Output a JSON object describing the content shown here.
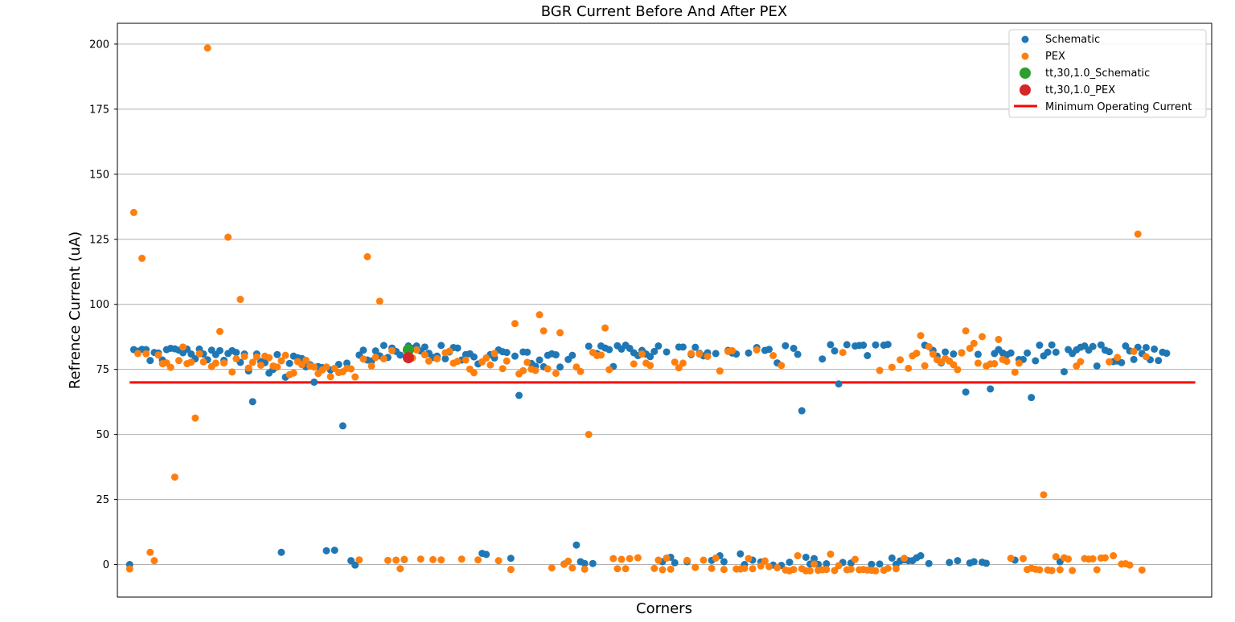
{
  "chart_data": {
    "type": "scatter",
    "title": "BGR Current Before And After PEX",
    "xlabel": "Corners",
    "ylabel": "Refrence Current (uA)",
    "ylim": [
      -12.5,
      208
    ],
    "xlim": [
      -3,
      264
    ],
    "yticks": [
      0,
      25,
      50,
      75,
      100,
      125,
      150,
      175,
      200
    ],
    "ytick_labels": [
      "0",
      "25",
      "50",
      "75",
      "100",
      "125",
      "150",
      "175",
      "200"
    ],
    "grid": "horizontal",
    "legend_position": "top-right",
    "legend": [
      "Schematic",
      "PEX",
      "tt,30,1.0_Schematic",
      "tt,30,1.0_PEX",
      "Minimum Operating Current"
    ],
    "colors": {
      "schematic": "#1f77b4",
      "pex": "#ff7f0e",
      "tt_schematic": "#2ca02c",
      "tt_pex": "#d62728",
      "min_current": "#ff0000"
    },
    "series": [
      {
        "name": "Schematic",
        "values": [
          0.0,
          82.6,
          82.0,
          82.7,
          82.6,
          78.4,
          81.5,
          81.3,
          78.6,
          82.6,
          83.1,
          82.9,
          82.4,
          81.4,
          82.8,
          80.9,
          79.1,
          82.8,
          80.9,
          78.7,
          82.4,
          80.7,
          82.2,
          78.5,
          81.1,
          82.2,
          81.5,
          77.7,
          80.9,
          74.4,
          62.6,
          80.9,
          78.0,
          77.6,
          73.6,
          75.0,
          80.7,
          4.7,
          72.0,
          77.3,
          80.1,
          79.5,
          79.2,
          76.0,
          76.8,
          70.1,
          76.1,
          75.7,
          5.3,
          74.8,
          5.5,
          76.9,
          53.3,
          77.4,
          1.5,
          -0.2,
          80.5,
          82.4,
          78.6,
          78.2,
          82.1,
          80.2,
          84.2,
          79.6,
          83.2,
          81.9,
          80.5,
          1.9,
          84.0,
          83.1,
          84.0,
          82.1,
          83.6,
          81.2,
          79.6,
          80.1,
          84.2,
          79.1,
          81.7,
          83.4,
          83.2,
          78.6,
          80.7,
          81.0,
          79.8,
          77.1,
          4.3,
          3.9,
          80.7,
          79.4,
          82.5,
          81.8,
          81.5,
          2.4,
          80.1,
          65.0,
          81.7,
          81.6,
          77.3,
          76.2,
          78.6,
          76.0,
          80.4,
          81.0,
          80.6,
          75.9,
          0.2,
          78.8,
          80.4,
          7.5,
          1.1,
          0.4,
          83.9,
          0.4,
          81.1,
          84.0,
          83.2,
          82.6,
          76.1,
          84.1,
          82.8,
          84.3,
          83.1,
          81.4,
          80.3,
          82.3,
          80.9,
          79.9,
          81.9,
          84.0,
          1.1,
          81.7,
          2.8,
          0.7,
          83.6,
          83.6,
          1.1,
          80.7,
          83.5,
          81.2,
          80.2,
          81.4,
          1.6,
          81.1,
          3.4,
          1.1,
          82.3,
          81.3,
          80.9,
          4.1,
          0.0,
          81.3,
          1.7,
          83.4,
          1.0,
          82.3,
          82.7,
          -0.2,
          77.5,
          -0.3,
          84.1,
          0.9,
          83.1,
          80.8,
          59.1,
          2.8,
          0.2,
          2.3,
          0.1,
          79.0,
          0.3,
          84.5,
          82.1,
          69.4,
          0.8,
          84.5,
          0.6,
          84.0,
          84.2,
          84.3,
          80.3,
          0.1,
          84.4,
          0.2,
          84.3,
          84.6,
          2.5,
          0.1,
          1.4,
          1.8,
          1.5,
          1.5,
          2.6,
          3.4,
          84.3,
          0.4,
          82.3,
          80.1,
          77.5,
          81.7,
          0.8,
          80.9,
          1.5,
          81.4,
          66.3,
          0.6,
          1.1,
          80.8,
          0.9,
          0.5,
          67.5,
          81.1,
          82.6,
          81.3,
          80.6,
          81.3,
          1.7,
          78.8,
          78.8,
          81.3,
          64.2,
          78.3,
          84.3,
          80.2,
          81.6,
          84.4,
          81.6,
          1.1,
          74.1,
          82.6,
          81.1,
          82.5,
          83.5,
          84.0,
          82.4,
          83.8,
          76.3,
          84.4,
          82.4,
          81.8,
          78.0,
          78.2,
          77.6,
          84.0,
          82.1,
          78.8,
          83.5,
          81.1,
          83.4,
          78.7,
          82.8,
          78.4,
          81.6,
          81.2
        ]
      },
      {
        "name": "PEX",
        "values": [
          -1.7,
          135.3,
          81.1,
          117.7,
          81.0,
          4.7,
          1.5,
          80.5,
          77.2,
          77.5,
          75.8,
          33.6,
          78.4,
          83.6,
          77.2,
          77.8,
          56.3,
          81.0,
          77.9,
          198.5,
          76.1,
          77.4,
          89.6,
          77.5,
          125.8,
          74.0,
          79.1,
          101.9,
          80.0,
          75.5,
          77.7,
          79.8,
          76.6,
          80.1,
          79.5,
          76.3,
          75.9,
          78.3,
          80.4,
          73.0,
          73.6,
          78.0,
          76.8,
          78.5,
          76.3,
          75.9,
          73.4,
          74.8,
          75.9,
          72.2,
          75.4,
          73.8,
          74.1,
          75.4,
          75.2,
          72.1,
          1.8,
          79.0,
          118.3,
          76.3,
          79.6,
          101.2,
          79.1,
          1.6,
          82.2,
          1.7,
          -1.6,
          2.0,
          82.4,
          79.4,
          82.5,
          2.1,
          80.6,
          78.2,
          1.9,
          79.1,
          1.8,
          81.4,
          82.0,
          77.4,
          78.1,
          2.1,
          78.6,
          75.1,
          73.7,
          1.8,
          77.9,
          79.4,
          76.7,
          81.1,
          1.5,
          75.3,
          78.2,
          -1.9,
          92.6,
          73.3,
          74.5,
          77.7,
          75.1,
          74.6,
          96.0,
          89.8,
          75.2,
          -1.3,
          73.5,
          89.1,
          0.1,
          1.3,
          -1.3,
          75.9,
          74.2,
          -1.8,
          50.0,
          81.5,
          80.3,
          80.5,
          90.9,
          74.9,
          2.3,
          -1.6,
          2.0,
          -1.6,
          2.3,
          77.1,
          2.6,
          80.9,
          77.4,
          76.5,
          -1.5,
          1.7,
          -2.0,
          2.5,
          -1.8,
          77.8,
          75.6,
          77.4,
          1.6,
          81.1,
          -1.1,
          80.9,
          1.7,
          80.0,
          -1.5,
          2.5,
          74.4,
          -1.9,
          81.9,
          82.2,
          -1.7,
          -1.7,
          -1.5,
          2.3,
          -1.6,
          82.5,
          -0.5,
          1.4,
          -0.8,
          80.3,
          -1.2,
          76.5,
          -2.1,
          -2.4,
          -1.9,
          3.4,
          -1.6,
          -2.4,
          -2.4,
          0.2,
          -2.2,
          -2.0,
          -1.9,
          4.0,
          -2.3,
          -0.4,
          81.5,
          -2.0,
          -1.8,
          2.0,
          -2.0,
          -1.9,
          -2.1,
          -2.2,
          -2.4,
          74.6,
          -2.2,
          -1.5,
          75.8,
          -1.6,
          78.7,
          2.4,
          75.4,
          80.2,
          81.2,
          88.0,
          76.4,
          83.7,
          80.9,
          78.7,
          77.8,
          79.2,
          78.2,
          76.8,
          74.9,
          81.3,
          89.8,
          83.1,
          85.0,
          77.4,
          87.6,
          76.3,
          77.1,
          77.2,
          86.5,
          78.8,
          78.1,
          2.4,
          73.9,
          77.4,
          2.3,
          -1.9,
          -1.4,
          -1.8,
          -2.0,
          26.8,
          -2.1,
          -2.3,
          3.0,
          -2.0,
          2.6,
          2.1,
          -2.3,
          76.3,
          78.0,
          2.3,
          2.1,
          2.2,
          -2.0,
          2.5,
          2.6,
          77.9,
          3.4,
          79.6,
          0.2,
          0.3,
          -0.2,
          81.9,
          127.0,
          -2.1,
          79.9
        ]
      },
      {
        "name": "tt,30,1.0_Schematic",
        "points": [
          {
            "x": 68,
            "y": 82.5
          }
        ]
      },
      {
        "name": "tt,30,1.0_PEX",
        "points": [
          {
            "x": 68,
            "y": 79.5
          }
        ]
      },
      {
        "name": "Minimum Operating Current",
        "y": 70,
        "x_range": [
          0,
          260
        ]
      }
    ]
  }
}
